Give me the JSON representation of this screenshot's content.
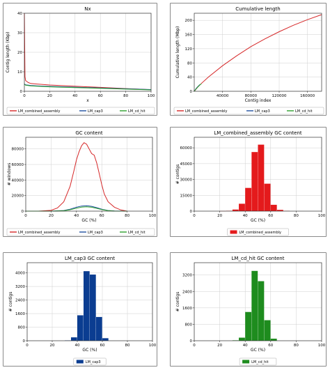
{
  "chart_data": [
    {
      "id": "nx",
      "type": "line",
      "title": "Nx",
      "xlabel": "x",
      "ylabel": "Contig length (Kbp)",
      "xlim": [
        0,
        100
      ],
      "ylim": [
        0,
        40
      ],
      "xticks": [
        0,
        20,
        40,
        60,
        80,
        100
      ],
      "yticks": [
        0,
        10,
        20,
        30,
        40
      ],
      "grid": true,
      "legend": "bottom",
      "series": [
        {
          "name": "LM_combined_assembly",
          "color": "#d62728",
          "x": [
            0,
            0.5,
            1,
            3,
            5,
            10,
            20,
            30,
            40,
            50,
            60,
            70,
            80,
            90,
            100
          ],
          "y": [
            40,
            7.5,
            5.5,
            4.5,
            4.0,
            3.7,
            3.2,
            2.9,
            2.6,
            2.3,
            2.0,
            1.7,
            1.4,
            1.1,
            0.8
          ]
        },
        {
          "name": "LM_cap3",
          "color": "#1f4fa0",
          "x": [
            0,
            1,
            5,
            10,
            20,
            40,
            60,
            80,
            100
          ],
          "y": [
            3.8,
            3.3,
            3.0,
            2.8,
            2.5,
            2.1,
            1.7,
            1.3,
            0.9
          ]
        },
        {
          "name": "LM_cd_hit",
          "color": "#2ca02c",
          "x": [
            0,
            1,
            5,
            10,
            20,
            40,
            60,
            80,
            100
          ],
          "y": [
            3.6,
            3.1,
            2.8,
            2.6,
            2.3,
            1.9,
            1.5,
            1.1,
            0.7
          ]
        }
      ]
    },
    {
      "id": "cumulative",
      "type": "line",
      "title": "Cumulative length",
      "xlabel": "Contig index",
      "ylabel": "Cumulative length (Mbp)",
      "xlim": [
        0,
        180000
      ],
      "ylim": [
        0,
        220
      ],
      "xticks": [
        40000,
        80000,
        120000,
        160000
      ],
      "yticks": [
        0,
        40,
        80,
        120,
        160,
        200
      ],
      "grid": true,
      "legend": "bottom",
      "series": [
        {
          "name": "LM_combined_assembly",
          "color": "#d62728",
          "x": [
            0,
            5000,
            10000,
            20000,
            40000,
            60000,
            80000,
            100000,
            120000,
            140000,
            160000,
            180000
          ],
          "y": [
            0,
            12,
            22,
            40,
            72,
            100,
            126,
            148,
            168,
            186,
            202,
            216
          ]
        },
        {
          "name": "LM_cap3",
          "color": "#1f4fa0",
          "x": [
            0,
            2000,
            4000,
            6000,
            8000
          ],
          "y": [
            0,
            6,
            11,
            15,
            19
          ]
        },
        {
          "name": "LM_cd_hit",
          "color": "#2ca02c",
          "x": [
            0,
            2000,
            4000,
            6000,
            8000,
            10000
          ],
          "y": [
            0,
            5,
            10,
            14,
            18,
            21
          ]
        }
      ]
    },
    {
      "id": "gc",
      "type": "line",
      "title": "GC content",
      "xlabel": "GC (%)",
      "ylabel": "# windows",
      "xlim": [
        0,
        100
      ],
      "ylim": [
        0,
        95000
      ],
      "xticks": [
        0,
        20,
        40,
        60,
        80,
        100
      ],
      "yticks": [
        0,
        20000,
        40000,
        60000,
        80000
      ],
      "grid": true,
      "legend": "bottom",
      "series": [
        {
          "name": "LM_combined_assembly",
          "color": "#d62728",
          "x": [
            0,
            10,
            20,
            25,
            30,
            35,
            38,
            40,
            42,
            44,
            46,
            48,
            50,
            52,
            54,
            56,
            58,
            60,
            62,
            65,
            70,
            75,
            80
          ],
          "y": [
            0,
            0,
            1000,
            4000,
            12000,
            32000,
            52000,
            66000,
            76000,
            84000,
            88000,
            86000,
            80000,
            74000,
            72000,
            62000,
            48000,
            34000,
            22000,
            12000,
            5000,
            1500,
            0
          ]
        },
        {
          "name": "LM_cap3",
          "color": "#1f4fa0",
          "x": [
            0,
            20,
            30,
            35,
            40,
            44,
            48,
            52,
            56,
            60,
            65,
            70,
            80
          ],
          "y": [
            0,
            0,
            800,
            2500,
            5000,
            6500,
            7000,
            6200,
            4500,
            2500,
            800,
            200,
            0
          ]
        },
        {
          "name": "LM_cd_hit",
          "color": "#2ca02c",
          "x": [
            0,
            20,
            30,
            35,
            40,
            44,
            48,
            52,
            56,
            60,
            65,
            70,
            80
          ],
          "y": [
            0,
            0,
            500,
            1800,
            3800,
            5200,
            5600,
            5000,
            3600,
            2000,
            600,
            100,
            0
          ]
        }
      ]
    },
    {
      "id": "gc_combined",
      "type": "bar",
      "title": "LM_combined_assembly GC content",
      "xlabel": "GC (%)",
      "ylabel": "# contigs",
      "xlim": [
        0,
        100
      ],
      "ylim": [
        0,
        70000
      ],
      "xticks": [
        0,
        20,
        40,
        60,
        80,
        100
      ],
      "yticks": [
        0,
        15000,
        30000,
        45000,
        60000
      ],
      "grid": true,
      "legend": "bottom",
      "color": "#e41a1c",
      "bin_width": 5,
      "bins": [
        20,
        25,
        30,
        35,
        40,
        45,
        50,
        55,
        60,
        65,
        70
      ],
      "values": [
        100,
        300,
        1500,
        7000,
        22000,
        56000,
        63000,
        26000,
        6000,
        1200,
        200
      ],
      "series": [
        {
          "name": "LM_combined_assembly",
          "color": "#e41a1c"
        }
      ]
    },
    {
      "id": "gc_cap3",
      "type": "bar",
      "title": "LM_cap3 GC content",
      "xlabel": "GC (%)",
      "ylabel": "# contigs",
      "xlim": [
        0,
        100
      ],
      "ylim": [
        0,
        4600
      ],
      "xticks": [
        0,
        20,
        40,
        60,
        80,
        100
      ],
      "yticks": [
        0,
        800,
        1600,
        2400,
        3200,
        4000
      ],
      "grid": true,
      "legend": "bottom",
      "color": "#0b3d91",
      "bin_width": 5,
      "bins": [
        30,
        35,
        40,
        45,
        50,
        55,
        60
      ],
      "values": [
        20,
        200,
        1500,
        4100,
        3900,
        1400,
        150
      ],
      "series": [
        {
          "name": "LM_cap3",
          "color": "#0b3d91"
        }
      ]
    },
    {
      "id": "gc_cdhit",
      "type": "bar",
      "title": "LM_cd_hit GC content",
      "xlabel": "GC (%)",
      "ylabel": "# contigs",
      "xlim": [
        0,
        100
      ],
      "ylim": [
        0,
        3800
      ],
      "xticks": [
        0,
        20,
        40,
        60,
        80,
        100
      ],
      "yticks": [
        0,
        800,
        1600,
        2400,
        3200
      ],
      "grid": true,
      "legend": "bottom",
      "color": "#1e8c1e",
      "bin_width": 5,
      "bins": [
        30,
        35,
        40,
        45,
        50,
        55,
        60
      ],
      "values": [
        20,
        150,
        1400,
        3400,
        2900,
        1000,
        100
      ],
      "series": [
        {
          "name": "LM_cd_hit",
          "color": "#1e8c1e"
        }
      ]
    }
  ]
}
